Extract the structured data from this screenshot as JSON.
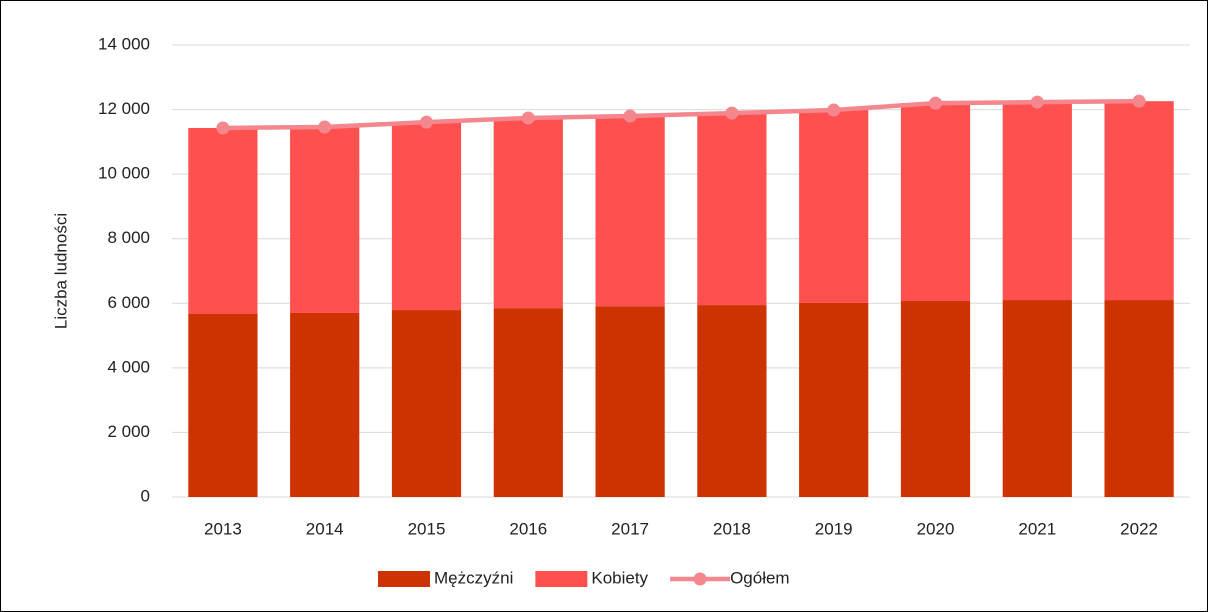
{
  "chart_data": {
    "type": "bar",
    "stacked": true,
    "y_label": "Liczba ludności",
    "categories": [
      "2013",
      "2014",
      "2015",
      "2016",
      "2017",
      "2018",
      "2019",
      "2020",
      "2021",
      "2022"
    ],
    "series": [
      {
        "name": "Mężczyźni",
        "color": "#cc3300",
        "type": "bar",
        "values": [
          5680,
          5700,
          5790,
          5850,
          5910,
          5945,
          6010,
          6070,
          6100,
          6100
        ]
      },
      {
        "name": "Kobiety",
        "color": "#ff5050",
        "type": "bar",
        "values": [
          5750,
          5760,
          5820,
          5890,
          5890,
          5945,
          5975,
          6130,
          6130,
          6160
        ]
      },
      {
        "name": "Ogółem",
        "color": "#f4868e",
        "type": "line",
        "values": [
          11430,
          11460,
          11610,
          11740,
          11800,
          11890,
          11985,
          12200,
          12230,
          12260
        ]
      }
    ],
    "ylim": [
      0,
      14000
    ],
    "yticks": [
      0,
      {
        "value": 2000,
        "label": "2 000"
      },
      {
        "value": 4000,
        "label": "4 000"
      },
      {
        "value": 6000,
        "label": "6 000"
      },
      {
        "value": 8000,
        "label": "8 000"
      },
      {
        "value": 10000,
        "label": "10 000"
      },
      {
        "value": 12000,
        "label": "12 000"
      },
      {
        "value": 14000,
        "label": "14 000"
      }
    ],
    "grid": true,
    "legend": "bottom"
  }
}
